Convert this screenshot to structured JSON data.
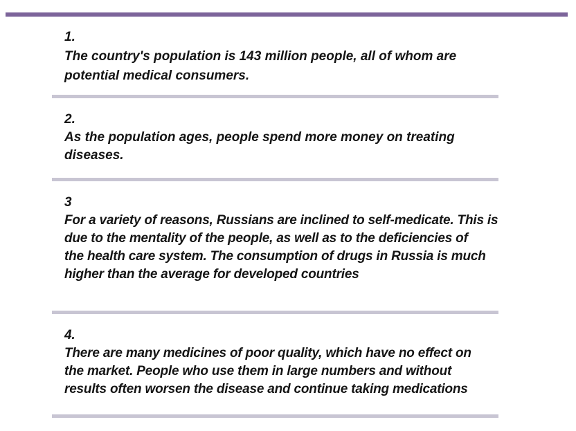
{
  "page": {
    "colors": {
      "top_bar": "#7c649a",
      "divider": "#c8c5d3",
      "text": "#151515",
      "background": "#ffffff"
    },
    "sections": [
      {
        "number": "1.",
        "lines": [
          "The country's population is 143 million people, all of whom are",
          "potential medical consumers."
        ]
      },
      {
        "number": "2.",
        "lines": [
          "As the population ages, people spend more money on treating",
          "diseases."
        ]
      },
      {
        "number": "3",
        "lines": [
          "For a variety of reasons, Russians are inclined to self-medicate. This is",
          "due to the mentality of the people, as well as to the deficiencies of",
          "the health care system. The consumption of drugs in Russia is much",
          "higher than the average for developed countries"
        ]
      },
      {
        "number": "4.",
        "lines": [
          "There are many medicines of poor quality, which have no effect on",
          "the market. People who use them in large numbers and without",
          "results often worsen the disease and continue taking medications"
        ]
      }
    ]
  }
}
